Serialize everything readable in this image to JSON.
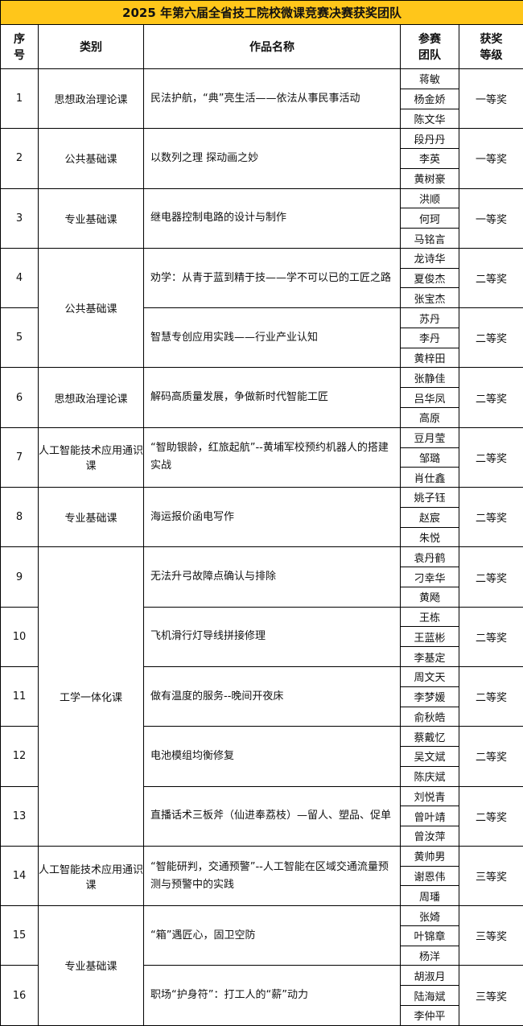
{
  "title": "2025 年第六届全省技工院校微课竞赛决赛获奖团队",
  "headers": [
    "序号",
    "类别",
    "作品名称",
    "参赛团队",
    "获奖等级"
  ],
  "rows": [
    {
      "no": 1,
      "category": "思想政治理论课",
      "work": "民法护航，“典”亮生活——依法从事民事活动",
      "team": [
        "蒋敏",
        "杨金娇",
        "陈文华"
      ],
      "award": "一等奖"
    },
    {
      "no": 2,
      "category": "公共基础课",
      "work": "以数列之理 探动画之妙",
      "team": [
        "段丹丹",
        "李英",
        "黄树豪"
      ],
      "award": "一等奖"
    },
    {
      "no": 3,
      "category": "专业基础课",
      "work": "继电器控制电路的设计与制作",
      "team": [
        "洪顺",
        "何珂",
        "马铭言"
      ],
      "award": "一等奖"
    },
    {
      "no": 4,
      "category": "公共基础课",
      "work": "劝学：从青于蓝到精于技——学不可以已的工匠之路",
      "team": [
        "龙诗华",
        "夏俊杰",
        "张宝杰"
      ],
      "award": "二等奖"
    },
    {
      "no": 5,
      "category": null,
      "work": "智慧专创应用实践——行业产业认知",
      "team": [
        "苏丹",
        "李丹",
        "黄梓田"
      ],
      "award": "二等奖"
    },
    {
      "no": 6,
      "category": "思想政治理论课",
      "work": "解码高质量发展，争做新时代智能工匠",
      "team": [
        "张静佳",
        "吕华凤",
        "高原"
      ],
      "award": "二等奖"
    },
    {
      "no": 7,
      "category": "人工智能技术应用通识课",
      "work": "“智助银龄，红旅起航”--黄埔军校预约机器人的搭建实战",
      "team": [
        "豆月莹",
        "邹璐",
        "肖仕鑫"
      ],
      "award": "二等奖"
    },
    {
      "no": 8,
      "category": "专业基础课",
      "work": "海运报价函电写作",
      "team": [
        "姚子钰",
        "赵宸",
        "朱悦"
      ],
      "award": "二等奖"
    },
    {
      "no": 9,
      "category": "工学一体化课",
      "work": "无法升弓故障点确认与排除",
      "team": [
        "袁丹鹤",
        "刁幸华",
        "黄飏"
      ],
      "award": "二等奖"
    },
    {
      "no": 10,
      "category": null,
      "work": "飞机滑行灯导线拼接修理",
      "team": [
        "王栋",
        "王蓝彬",
        "李基定"
      ],
      "award": "二等奖"
    },
    {
      "no": 11,
      "category": null,
      "work": "做有温度的服务--晚间开夜床",
      "team": [
        "周文天",
        "李梦媛",
        "俞秋皓"
      ],
      "award": "二等奖"
    },
    {
      "no": 12,
      "category": null,
      "work": "电池模组均衡修复",
      "team": [
        "蔡戴忆",
        "吴文斌",
        "陈庆斌"
      ],
      "award": "二等奖"
    },
    {
      "no": 13,
      "category": null,
      "work": "直播话术三板斧（仙进奉荔枝）—留人、塑品、促单",
      "team": [
        "刘悦青",
        "曾叶靖",
        "曾汝萍"
      ],
      "award": "二等奖"
    },
    {
      "no": 14,
      "category": "人工智能技术应用通识课",
      "work": "“智能研判，交通预警”--人工智能在区域交通流量预测与预警中的实践",
      "team": [
        "黄帅男",
        "谢恩伟",
        "周璠"
      ],
      "award": "三等奖"
    },
    {
      "no": 15,
      "category": "专业基础课",
      "work": "“箱”遇匠心，固卫空防",
      "team": [
        "张婍",
        "叶锦章",
        "杨洋"
      ],
      "award": "三等奖"
    },
    {
      "no": 16,
      "category": null,
      "work": "职场“护身符”：打工人的“薪”动力",
      "team": [
        "胡淑月",
        "陆海斌",
        "李仲平"
      ],
      "award": "三等奖"
    }
  ]
}
